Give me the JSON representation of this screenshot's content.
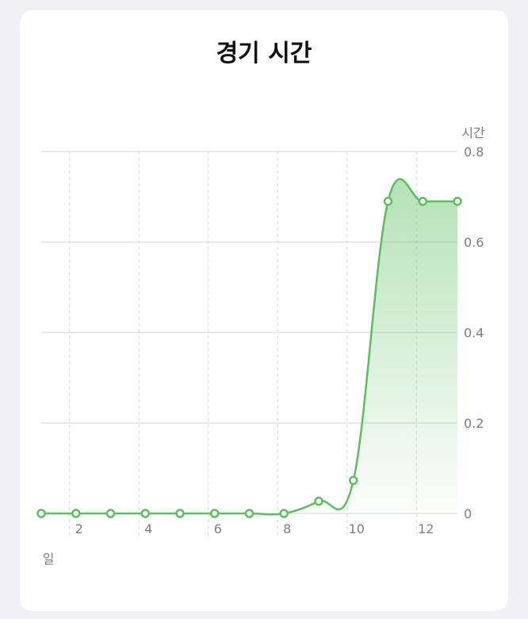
{
  "chart_data": {
    "type": "area",
    "title": "경기 시간",
    "xlabel": "일",
    "ylabel": "시간",
    "x": [
      1,
      2,
      3,
      4,
      5,
      6,
      7,
      8,
      9,
      10,
      11,
      12,
      13
    ],
    "values": [
      0,
      0,
      0,
      0,
      0,
      0,
      0,
      0,
      0.027,
      0.073,
      0.69,
      0.69,
      0.69
    ],
    "xlim": [
      1,
      13
    ],
    "ylim": [
      0,
      0.8
    ],
    "x_ticks": [
      {
        "v": 2,
        "label": "2"
      },
      {
        "v": 4,
        "label": "4"
      },
      {
        "v": 6,
        "label": "6"
      },
      {
        "v": 8,
        "label": "8"
      },
      {
        "v": 10,
        "label": "10"
      },
      {
        "v": 12,
        "label": "12"
      }
    ],
    "y_ticks": [
      {
        "v": 0,
        "label": "0"
      },
      {
        "v": 0.2,
        "label": "0.2"
      },
      {
        "v": 0.4,
        "label": "0.4"
      },
      {
        "v": 0.6,
        "label": "0.6"
      },
      {
        "v": 0.8,
        "label": "0.8"
      }
    ],
    "grid": true,
    "colors": {
      "line": "#5bbf5e",
      "fill": "#5bbf5e",
      "grid": "#d6d6d6",
      "marker_fill": "#ffffff"
    }
  }
}
